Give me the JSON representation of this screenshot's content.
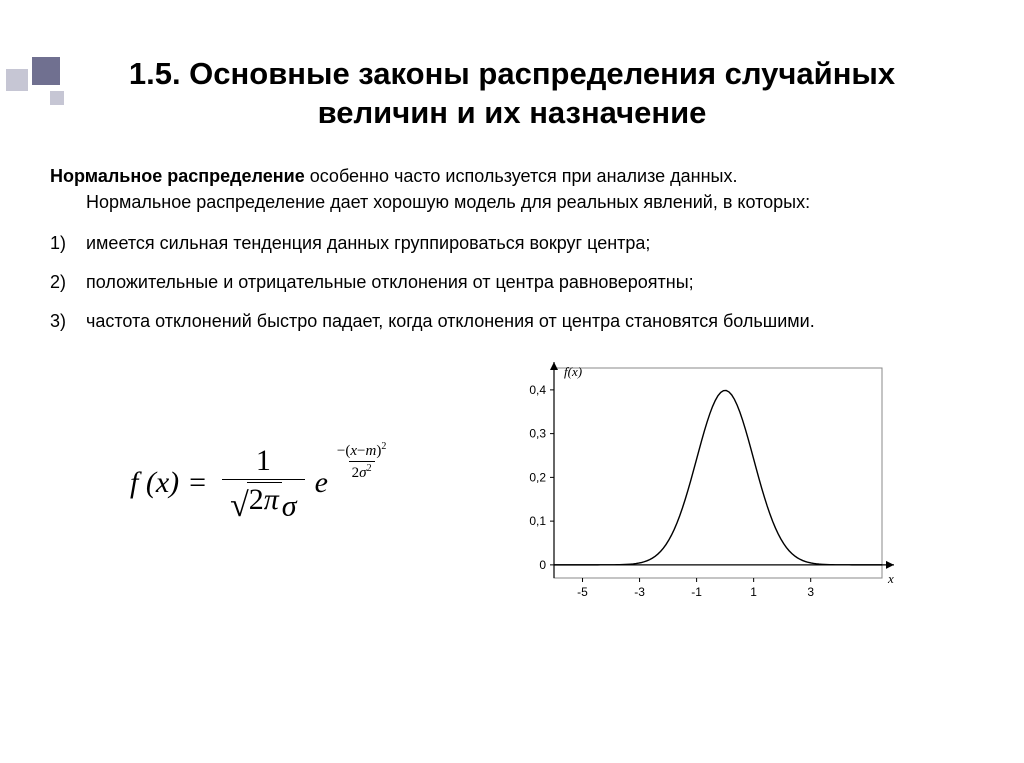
{
  "title": "1.5. Основные законы распределения случайных величин и их назначение",
  "intro_bold": "Нормальное распределение",
  "intro_rest1": " особенно часто используется при анализе данных.",
  "intro_line2": "Нормальное распределение дает хорошую модель для реальных явлений, в которых:",
  "items": [
    {
      "num": "1)",
      "text": "имеется сильная тенденция данных группироваться вокруг центра;"
    },
    {
      "num": "2)",
      "text": "положительные и отрицательные отклонения от центра равновероятны;"
    },
    {
      "num": "3)",
      "text": "частота отклонений быстро падает, когда отклонения от центра становятся большими."
    }
  ],
  "formula": {
    "lhs": "f (x)",
    "eq": "=",
    "frac_num": "1",
    "pi": "π",
    "two": "2",
    "sigma": "σ",
    "e": "e",
    "exp_num_pre": "−",
    "exp_num_open": "(",
    "exp_num_x": "x",
    "exp_num_minus": "−",
    "exp_num_m": "m",
    "exp_num_close": ")",
    "exp_num_pow": "2",
    "exp_den_two": "2",
    "exp_den_sigma": "σ",
    "exp_den_pow": "2"
  },
  "chart": {
    "type": "line",
    "axis_label": "f(x)",
    "x_label": "x",
    "xlim": [
      -6,
      5.5
    ],
    "ylim": [
      -0.03,
      0.45
    ],
    "yticks": [
      0,
      0.1,
      0.2,
      0.3,
      0.4
    ],
    "ytick_labels": [
      "0",
      "0,1",
      "0,2",
      "0,3",
      "0,4"
    ],
    "xticks": [
      -5,
      -3,
      -1,
      1,
      3
    ],
    "xtick_labels": [
      "-5",
      "-3",
      "-1",
      "1",
      "3"
    ],
    "line_color": "#000000",
    "line_width": 1.4,
    "background_color": "#ffffff",
    "border_color": "#888888",
    "axis_color": "#000000",
    "tick_font_size": 12,
    "curve": {
      "mu": 0,
      "sigma": 1,
      "points": 120
    }
  },
  "decor": {
    "dark_color": "#707090",
    "light_color": "#c6c6d4"
  }
}
